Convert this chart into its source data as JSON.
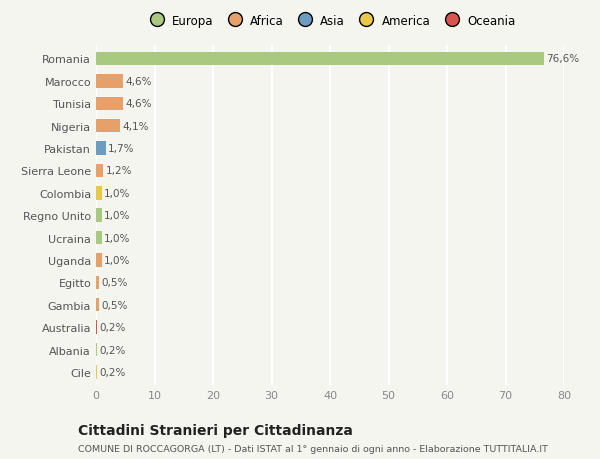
{
  "title": "Cittadini Stranieri per Cittadinanza",
  "subtitle": "COMUNE DI ROCCAGORGA (LT) - Dati ISTAT al 1° gennaio di ogni anno - Elaborazione TUTTITALIA.IT",
  "categories": [
    "Romania",
    "Marocco",
    "Tunisia",
    "Nigeria",
    "Pakistan",
    "Sierra Leone",
    "Colombia",
    "Regno Unito",
    "Ucraina",
    "Uganda",
    "Egitto",
    "Gambia",
    "Australia",
    "Albania",
    "Cile"
  ],
  "values": [
    76.6,
    4.6,
    4.6,
    4.1,
    1.7,
    1.2,
    1.0,
    1.0,
    1.0,
    1.0,
    0.5,
    0.5,
    0.2,
    0.2,
    0.2
  ],
  "labels": [
    "76,6%",
    "4,6%",
    "4,6%",
    "4,1%",
    "1,7%",
    "1,2%",
    "1,0%",
    "1,0%",
    "1,0%",
    "1,0%",
    "0,5%",
    "0,5%",
    "0,2%",
    "0,2%",
    "0,2%"
  ],
  "bar_colors": [
    "#a8c97f",
    "#e8a06a",
    "#e8a06a",
    "#e8a06a",
    "#6b9dc2",
    "#e8a06a",
    "#e8c84a",
    "#a8c97f",
    "#a8c97f",
    "#e8a06a",
    "#e8a06a",
    "#e8a06a",
    "#d9534f",
    "#a8c97f",
    "#e8c84a"
  ],
  "continent_colors": {
    "Europa": "#a8c97f",
    "Africa": "#e8a06a",
    "Asia": "#6b9dc2",
    "America": "#e8c84a",
    "Oceania": "#d9534f"
  },
  "xlim": [
    0,
    80
  ],
  "xticks": [
    0,
    10,
    20,
    30,
    40,
    50,
    60,
    70,
    80
  ],
  "background_color": "#f5f5f0",
  "grid_color": "#ffffff",
  "bar_height": 0.6,
  "figsize": [
    6.0,
    4.6
  ],
  "dpi": 100
}
